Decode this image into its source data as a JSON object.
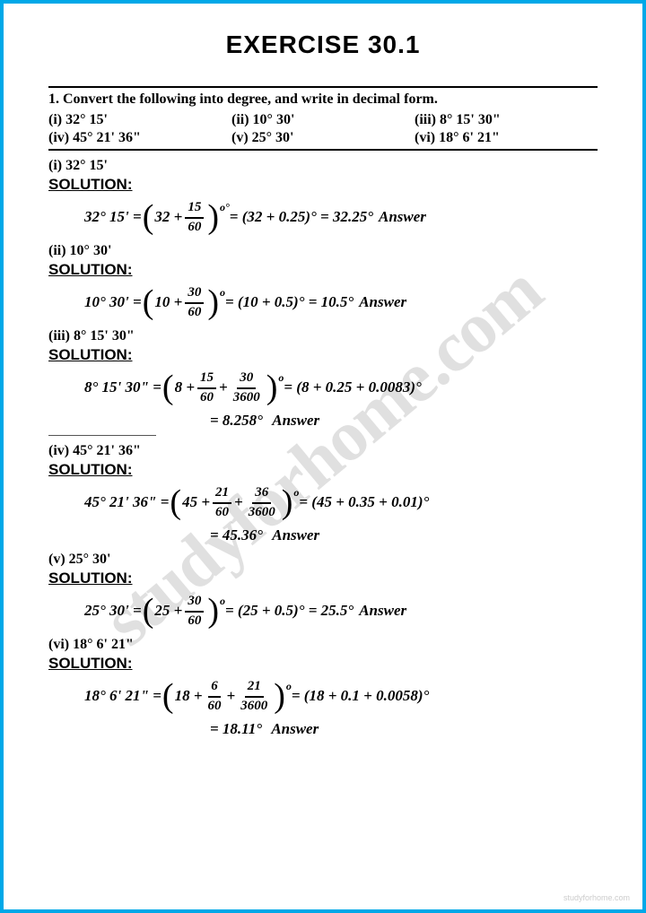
{
  "title": "EXERCISE 30.1",
  "question": "1. Convert the following into degree, and write in decimal form.",
  "parts": {
    "i": "(i) 32° 15'",
    "ii": "(ii) 10° 30'",
    "iii": "(iii) 8° 15' 30\"",
    "iv": "(iv) 45° 21' 36\"",
    "v": "(v) 25° 30'",
    "vi": "(vi) 18° 6' 21\""
  },
  "solution_label": "SOLUTION:",
  "answer_label": "Answer",
  "watermark": "studyforhome.com",
  "footer": "studyforhome.com",
  "sol": {
    "i": {
      "label": "(i) 32° 15'",
      "lhs": "32° 15' =",
      "base": "32 +",
      "f1n": "15",
      "f1d": "60",
      "exp": "o°",
      "mid": "= (32 + 0.25)° = 32.25°"
    },
    "ii": {
      "label": "(ii) 10° 30'",
      "lhs": "10° 30' =",
      "base": "10 +",
      "f1n": "30",
      "f1d": "60",
      "exp": "o",
      "mid": "= (10 + 0.5)° = 10.5°"
    },
    "iii": {
      "label": "(iii) 8° 15' 30\"",
      "lhs": "8° 15' 30\" =",
      "base": "8 +",
      "f1n": "15",
      "f1d": "60",
      "f2n": "30",
      "f2d": "3600",
      "exp": "o",
      "mid": "= (8 + 0.25 + 0.0083)°",
      "cont": "= 8.258°"
    },
    "iv": {
      "label": "(iv) 45° 21' 36\"",
      "lhs": "45° 21' 36\" =",
      "base": "45 +",
      "f1n": "21",
      "f1d": "60",
      "f2n": "36",
      "f2d": "3600",
      "exp": "o",
      "mid": "= (45 + 0.35 + 0.01)°",
      "cont": "= 45.36°"
    },
    "v": {
      "label": "(v) 25° 30'",
      "lhs": "25° 30' =",
      "base": "25 +",
      "f1n": "30",
      "f1d": "60",
      "exp": "o",
      "mid": "= (25 + 0.5)° = 25.5°"
    },
    "vi": {
      "label": "(vi) 18° 6' 21\"",
      "lhs": "18° 6' 21\" =",
      "base": "18 +",
      "f1n": "6",
      "f1d": "60",
      "f2n": "21",
      "f2d": "3600",
      "exp": "o",
      "mid": "= (18 + 0.1 + 0.0058)°",
      "cont": "= 18.11°"
    }
  },
  "colors": {
    "border": "#00a8e8",
    "text": "#000000",
    "watermark": "rgba(0,0,0,0.12)"
  }
}
